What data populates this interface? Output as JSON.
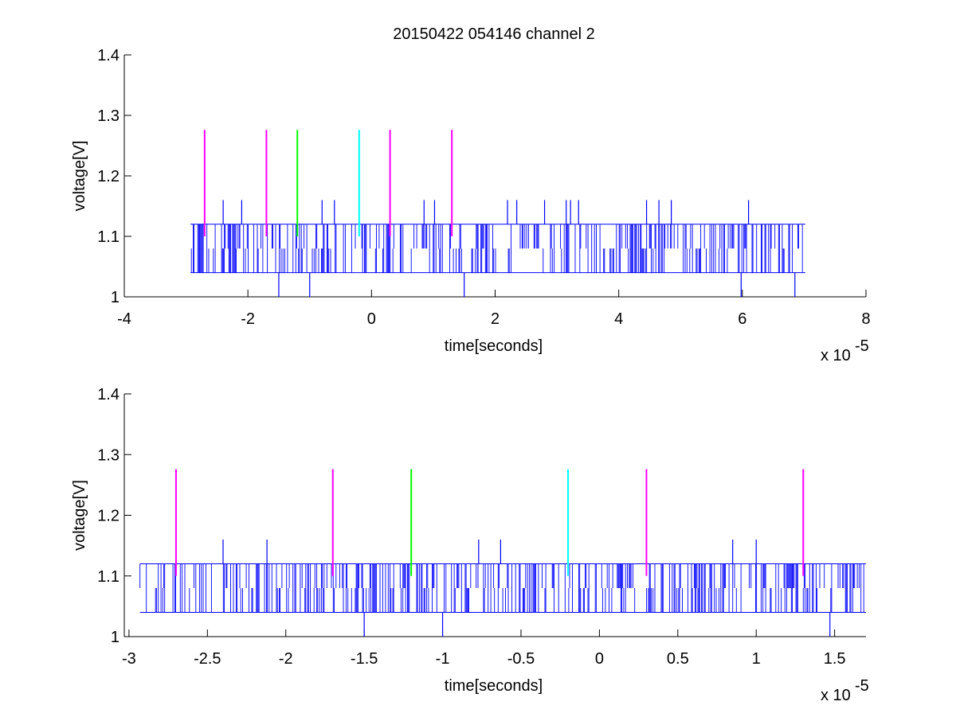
{
  "figure": {
    "title": "20150422 054146 channel 2"
  },
  "chart_data": [
    {
      "type": "line",
      "title": "20150422 054146 channel 2",
      "xlabel": "time[seconds]",
      "ylabel": "voltage[V]",
      "x_exponent_label": "x 10",
      "x_exponent": "-5",
      "xlim": [
        -4,
        8
      ],
      "ylim": [
        1,
        1.4
      ],
      "xticks": [
        -4,
        -2,
        0,
        2,
        4,
        6,
        8
      ],
      "xtick_labels": [
        "-4",
        "-2",
        "0",
        "2",
        "4",
        "6",
        "8"
      ],
      "yticks": [
        1,
        1.1,
        1.2,
        1.3,
        1.4
      ],
      "ytick_labels": [
        "1",
        "1.1",
        "1.2",
        "1.3",
        "1.4"
      ],
      "grid": false,
      "signal": {
        "color": "#0000ff",
        "x_range": [
          -2.93,
          7.02
        ],
        "levels": [
          1.04,
          1.08,
          1.12
        ],
        "spikes_up": [
          -2.4,
          -2.1,
          -0.8,
          -0.6,
          0.85,
          1.02,
          2.2,
          2.35,
          2.8,
          3.15,
          3.22,
          3.35,
          4.45,
          4.65,
          4.85,
          6.1
        ],
        "spikes_down": [
          -1.5,
          -1.0,
          1.5,
          5.98,
          6.85
        ],
        "spike_up_value": 1.16,
        "spike_down_value": 1.0
      },
      "markers": [
        {
          "x": -2.7,
          "y_range": [
            1.1,
            1.276
          ],
          "color": "#ff00ff"
        },
        {
          "x": -1.7,
          "y_range": [
            1.1,
            1.276
          ],
          "color": "#ff00ff"
        },
        {
          "x": -1.2,
          "y_range": [
            1.1,
            1.276
          ],
          "color": "#00ff00"
        },
        {
          "x": -0.2,
          "y_range": [
            1.1,
            1.276
          ],
          "color": "#00ffff"
        },
        {
          "x": 0.3,
          "y_range": [
            1.1,
            1.276
          ],
          "color": "#ff00ff"
        },
        {
          "x": 1.3,
          "y_range": [
            1.1,
            1.276
          ],
          "color": "#ff00ff"
        }
      ]
    },
    {
      "type": "line",
      "title": "",
      "xlabel": "time[seconds]",
      "ylabel": "voltage[V]",
      "x_exponent_label": "x 10",
      "x_exponent": "-5",
      "xlim": [
        -3.03,
        1.7
      ],
      "ylim": [
        1,
        1.4
      ],
      "xticks": [
        -3,
        -2.5,
        -2,
        -1.5,
        -1,
        -0.5,
        0,
        0.5,
        1,
        1.5
      ],
      "xtick_labels": [
        "-3",
        "-2.5",
        "-2",
        "-1.5",
        "-1",
        "-0.5",
        "0",
        "0.5",
        "1",
        "1.5"
      ],
      "yticks": [
        1,
        1.1,
        1.2,
        1.3,
        1.4
      ],
      "ytick_labels": [
        "1",
        "1.1",
        "1.2",
        "1.3",
        "1.4"
      ],
      "grid": false,
      "signal": {
        "color": "#0000ff",
        "x_range": [
          -2.93,
          1.7
        ],
        "levels": [
          1.04,
          1.08,
          1.12
        ],
        "spikes_up": [
          -2.4,
          -2.12,
          -0.77,
          -0.63,
          0.85,
          1.0
        ],
        "spikes_down": [
          -1.5,
          -1.0,
          1.47
        ],
        "spike_up_value": 1.16,
        "spike_down_value": 1.0
      },
      "markers": [
        {
          "x": -2.7,
          "y_range": [
            1.1,
            1.276
          ],
          "color": "#ff00ff"
        },
        {
          "x": -1.7,
          "y_range": [
            1.1,
            1.276
          ],
          "color": "#ff00ff"
        },
        {
          "x": -1.2,
          "y_range": [
            1.1,
            1.276
          ],
          "color": "#00ff00"
        },
        {
          "x": -0.2,
          "y_range": [
            1.1,
            1.276
          ],
          "color": "#00ffff"
        },
        {
          "x": 0.3,
          "y_range": [
            1.1,
            1.276
          ],
          "color": "#ff00ff"
        },
        {
          "x": 1.3,
          "y_range": [
            1.1,
            1.276
          ],
          "color": "#ff00ff"
        }
      ]
    }
  ]
}
